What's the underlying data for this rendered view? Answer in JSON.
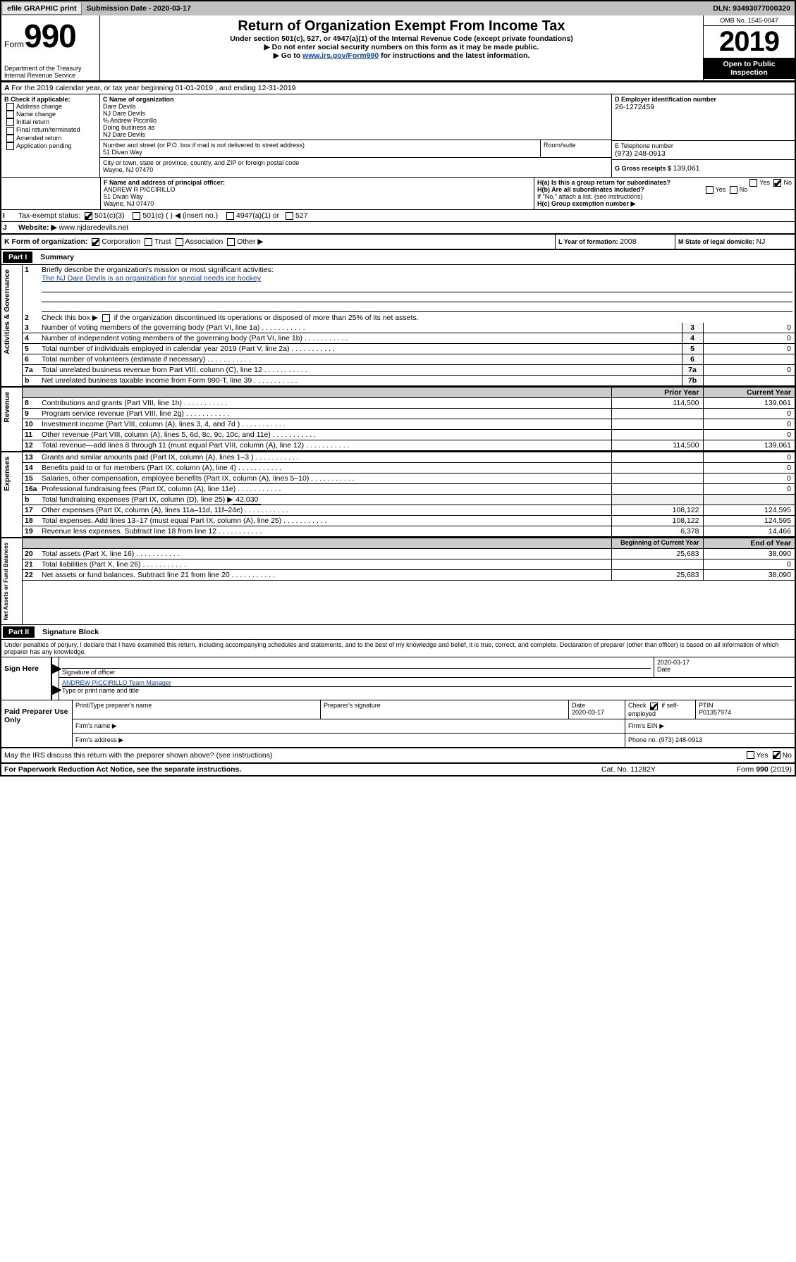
{
  "topbar": {
    "efile": "efile GRAPHIC print",
    "sub_lbl": "Submission Date - 2020-03-17",
    "dln_lbl": "DLN: 93493077000320"
  },
  "hdr": {
    "form_word": "Form",
    "f990": "990",
    "dept": "Department of the Treasury",
    "irs": "Internal Revenue Service",
    "title": "Return of Organization Exempt From Income Tax",
    "subtitle": "Under section 501(c), 527, or 4947(a)(1) of the Internal Revenue Code (except private foundations)",
    "ssn": "▶ Do not enter social security numbers on this form as it may be made public.",
    "goto_pre": "▶ Go to ",
    "goto_link": "www.irs.gov/Form990",
    "goto_post": " for instructions and the latest information.",
    "omb": "OMB No. 1545-0047",
    "year": "2019",
    "open": "Open to Public Inspection"
  },
  "A": {
    "text": "For the 2019 calendar year, or tax year beginning 01-01-2019",
    "end": ", and ending 12-31-2019"
  },
  "B": {
    "lbl": "B Check if applicable:",
    "opts": [
      "Address change",
      "Name change",
      "Initial return",
      "Final return/terminated",
      "Amended return",
      "Application pending"
    ]
  },
  "C": {
    "name_lbl": "C Name of organization",
    "name1": "Dare Devils",
    "name2": "NJ Dare Devils",
    "co": "% Andrew Piccirillo",
    "dba_lbl": "Doing business as",
    "dba": "NJ Dare Devils",
    "addr_lbl": "Number and street (or P.O. box if mail is not delivered to street address)",
    "addr": "51 Divan Way",
    "room_lbl": "Room/suite",
    "city_lbl": "City or town, state or province, country, and ZIP or foreign postal code",
    "city": "Wayne, NJ  07470"
  },
  "D": {
    "lbl": "D Employer identification number",
    "val": "26-1272459"
  },
  "E": {
    "lbl": "E Telephone number",
    "val": "(973) 248-0913"
  },
  "G": {
    "lbl": "G Gross receipts $ ",
    "val": "139,061"
  },
  "F": {
    "lbl": "F  Name and address of principal officer:",
    "name": "ANDREW R PICCIRILLO",
    "addr1": "51 Divan Way",
    "addr2": "Wayne, NJ  07470"
  },
  "H": {
    "a": "H(a)  Is this a group return for subordinates?",
    "b": "H(b)  Are all subordinates included?",
    "note": "If \"No,\" attach a list. (see instructions)",
    "c": "H(c)  Group exemption number ▶",
    "yes": "Yes",
    "no": "No"
  },
  "I": {
    "lbl": "Tax-exempt status:",
    "o1": "501(c)(3)",
    "o2": "501(c) (  ) ◀ (insert no.)",
    "o3": "4947(a)(1) or",
    "o4": "527"
  },
  "J": {
    "lbl": "Website: ▶",
    "val": "www.njdaredevils.net"
  },
  "K": {
    "lbl": "K Form of organization:",
    "o1": "Corporation",
    "o2": "Trust",
    "o3": "Association",
    "o4": "Other ▶"
  },
  "L": {
    "lbl": "L Year of formation: ",
    "val": "2008"
  },
  "M": {
    "lbl": "M State of legal domicile: ",
    "val": "NJ"
  },
  "parts": {
    "p1": "Part I",
    "p1t": "Summary",
    "p2": "Part II",
    "p2t": "Signature Block"
  },
  "sect_labels": {
    "ag": "Activities & Governance",
    "rev": "Revenue",
    "exp": "Expenses",
    "na": "Net Assets or Fund Balances"
  },
  "p1": {
    "l1": "Briefly describe the organization's mission or most significant activities:",
    "l1v": "The NJ Dare Devils is an organization for special needs ice hockey",
    "l2": "Check this box ▶",
    "l2b": "if the organization discontinued its operations or disposed of more than 25% of its net assets.",
    "rows_ag": [
      {
        "n": "3",
        "t": "Number of voting members of the governing body (Part VI, line 1a)",
        "box": "3",
        "v": "0"
      },
      {
        "n": "4",
        "t": "Number of independent voting members of the governing body (Part VI, line 1b)",
        "box": "4",
        "v": "0"
      },
      {
        "n": "5",
        "t": "Total number of individuals employed in calendar year 2019 (Part V, line 2a)",
        "box": "5",
        "v": "0"
      },
      {
        "n": "6",
        "t": "Total number of volunteers (estimate if necessary)",
        "box": "6",
        "v": ""
      },
      {
        "n": "7a",
        "t": "Total unrelated business revenue from Part VIII, column (C), line 12",
        "box": "7a",
        "v": "0"
      },
      {
        "n": "b",
        "t": "Net unrelated business taxable income from Form 990-T, line 39",
        "box": "7b",
        "v": ""
      }
    ],
    "col_py": "Prior Year",
    "col_cy": "Current Year",
    "rows_rev": [
      {
        "n": "8",
        "t": "Contributions and grants (Part VIII, line 1h)",
        "py": "114,500",
        "cy": "139,061"
      },
      {
        "n": "9",
        "t": "Program service revenue (Part VIII, line 2g)",
        "py": "",
        "cy": "0"
      },
      {
        "n": "10",
        "t": "Investment income (Part VIII, column (A), lines 3, 4, and 7d )",
        "py": "",
        "cy": "0"
      },
      {
        "n": "11",
        "t": "Other revenue (Part VIII, column (A), lines 5, 6d, 8c, 9c, 10c, and 11e)",
        "py": "",
        "cy": "0"
      },
      {
        "n": "12",
        "t": "Total revenue—add lines 8 through 11 (must equal Part VIII, column (A), line 12)",
        "py": "114,500",
        "cy": "139,061"
      }
    ],
    "rows_exp": [
      {
        "n": "13",
        "t": "Grants and similar amounts paid (Part IX, column (A), lines 1–3 )",
        "py": "",
        "cy": "0"
      },
      {
        "n": "14",
        "t": "Benefits paid to or for members (Part IX, column (A), line 4)",
        "py": "",
        "cy": "0"
      },
      {
        "n": "15",
        "t": "Salaries, other compensation, employee benefits (Part IX, column (A), lines 5–10)",
        "py": "",
        "cy": "0"
      },
      {
        "n": "16a",
        "t": "Professional fundraising fees (Part IX, column (A), line 11e)",
        "py": "",
        "cy": "0"
      }
    ],
    "exp_b": {
      "n": "b",
      "t": "Total fundraising expenses (Part IX, column (D), line 25) ▶",
      "v": "42,030"
    },
    "rows_exp2": [
      {
        "n": "17",
        "t": "Other expenses (Part IX, column (A), lines 11a–11d, 11f–24e)",
        "py": "108,122",
        "cy": "124,595"
      },
      {
        "n": "18",
        "t": "Total expenses. Add lines 13–17 (must equal Part IX, column (A), line 25)",
        "py": "108,122",
        "cy": "124,595"
      },
      {
        "n": "19",
        "t": "Revenue less expenses. Subtract line 18 from line 12",
        "py": "6,378",
        "cy": "14,466"
      }
    ],
    "col_bcy": "Beginning of Current Year",
    "col_eoy": "End of Year",
    "rows_na": [
      {
        "n": "20",
        "t": "Total assets (Part X, line 16)",
        "py": "25,683",
        "cy": "38,090"
      },
      {
        "n": "21",
        "t": "Total liabilities (Part X, line 26)",
        "py": "",
        "cy": "0"
      },
      {
        "n": "22",
        "t": "Net assets or fund balances. Subtract line 21 from line 20",
        "py": "25,683",
        "cy": "38,090"
      }
    ]
  },
  "sig": {
    "decl": "Under penalties of perjury, I declare that I have examined this return, including accompanying schedules and statements, and to the best of my knowledge and belief, it is true, correct, and complete. Declaration of preparer (other than officer) is based on all information of which preparer has any knowledge.",
    "sign_here": "Sign Here",
    "sig_officer": "Signature of officer",
    "date": "Date",
    "date_v": "2020-03-17",
    "typed": "ANDREW PICCIRILLO  Team Manager",
    "typed_lbl": "Type or print name and title",
    "paid": "Paid Preparer Use Only",
    "prep_name_lbl": "Print/Type preparer's name",
    "prep_sig_lbl": "Preparer's signature",
    "prep_date_v": "2020-03-17",
    "chk_se": "Check",
    "chk_se2": "if self-employed",
    "ptin_lbl": "PTIN",
    "ptin_v": "P01357974",
    "firm_name": "Firm's name   ▶",
    "firm_ein": "Firm's EIN ▶",
    "firm_addr": "Firm's address ▶",
    "phone": "Phone no. (973) 248-0913",
    "discuss": "May the IRS discuss this return with the preparer shown above? (see instructions)"
  },
  "foot": {
    "pra": "For Paperwork Reduction Act Notice, see the separate instructions.",
    "cat": "Cat. No. 11282Y",
    "form": "Form 990 (2019)"
  }
}
